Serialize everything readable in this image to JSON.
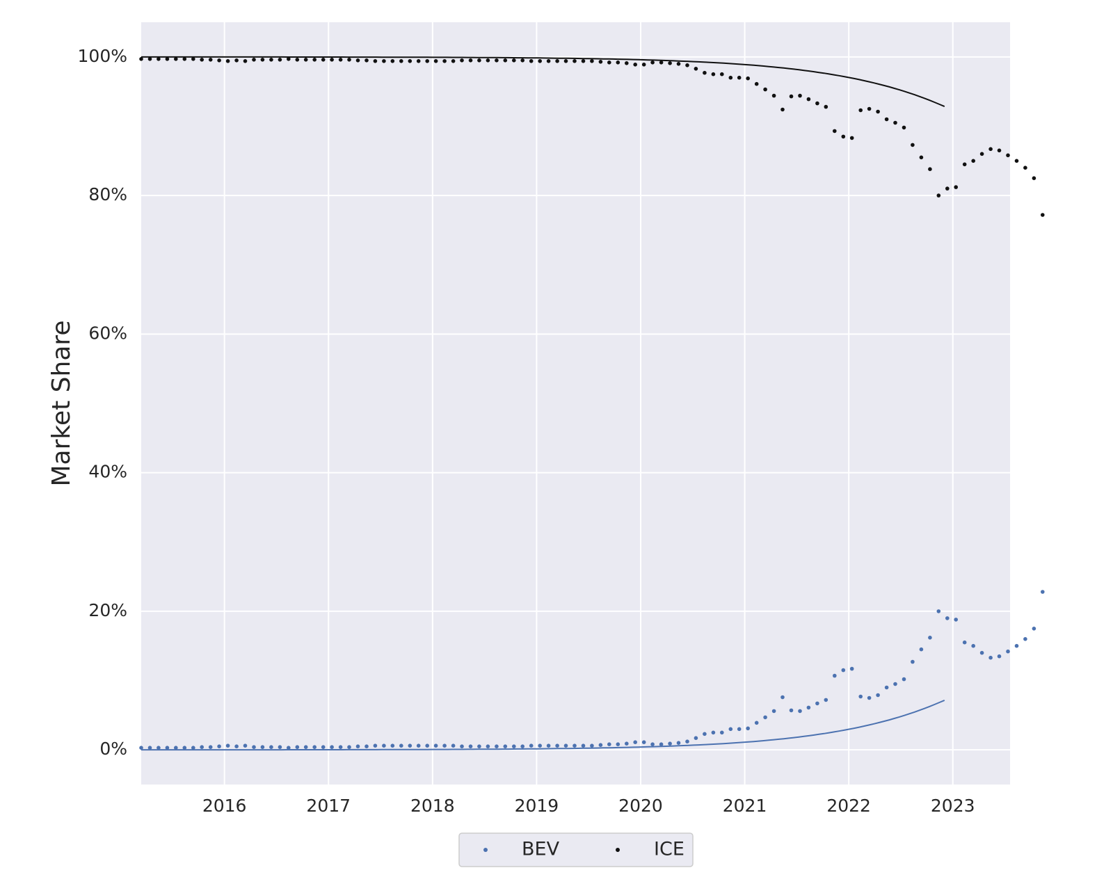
{
  "chart_data": {
    "type": "scatter",
    "title": "",
    "xlabel": "",
    "ylabel": "Market Share",
    "xlim": [
      2015.2,
      2023.55
    ],
    "ylim": [
      -0.05,
      1.05
    ],
    "xticks": [
      2016,
      2017,
      2018,
      2019,
      2020,
      2021,
      2022,
      2023
    ],
    "xtick_labels": [
      "2016",
      "2017",
      "2018",
      "2019",
      "2020",
      "2021",
      "2022",
      "2023"
    ],
    "yticks": [
      0,
      0.2,
      0.4,
      0.6,
      0.8,
      1.0
    ],
    "ytick_labels": [
      "0%",
      "20%",
      "40%",
      "60%",
      "80%",
      "100%"
    ],
    "grid": true,
    "legend_position": "bottom-center",
    "x_start": 2015.2,
    "x_step": 0.0833,
    "series": [
      {
        "name": "BEV",
        "color": "#4c72b0",
        "marker": "dot",
        "values": [
          0.003,
          0.003,
          0.003,
          0.003,
          0.003,
          0.003,
          0.003,
          0.004,
          0.004,
          0.005,
          0.006,
          0.005,
          0.006,
          0.004,
          0.004,
          0.004,
          0.004,
          0.003,
          0.004,
          0.004,
          0.004,
          0.004,
          0.004,
          0.004,
          0.004,
          0.005,
          0.005,
          0.006,
          0.006,
          0.006,
          0.006,
          0.006,
          0.006,
          0.006,
          0.006,
          0.006,
          0.006,
          0.005,
          0.005,
          0.005,
          0.005,
          0.005,
          0.005,
          0.005,
          0.005,
          0.006,
          0.006,
          0.006,
          0.006,
          0.006,
          0.006,
          0.006,
          0.006,
          0.007,
          0.008,
          0.008,
          0.009,
          0.011,
          0.011,
          0.008,
          0.008,
          0.009,
          0.01,
          0.012,
          0.017,
          0.023,
          0.025,
          0.025,
          0.03,
          0.03,
          0.031,
          0.039,
          0.047,
          0.056,
          0.076,
          0.057,
          0.056,
          0.061,
          0.067,
          0.072,
          0.107,
          0.115,
          0.117,
          0.077,
          0.075,
          0.079,
          0.09,
          0.095,
          0.102,
          0.127,
          0.145,
          0.162,
          0.2,
          0.19,
          0.188,
          0.155,
          0.15,
          0.14,
          0.133,
          0.135,
          0.142,
          0.15,
          0.16,
          0.175,
          0.228
        ]
      },
      {
        "name": "ICE",
        "color": "#111111",
        "marker": "dot",
        "values": [
          0.997,
          0.997,
          0.997,
          0.997,
          0.997,
          0.997,
          0.997,
          0.996,
          0.996,
          0.995,
          0.994,
          0.995,
          0.994,
          0.996,
          0.996,
          0.996,
          0.996,
          0.997,
          0.996,
          0.996,
          0.996,
          0.996,
          0.996,
          0.996,
          0.996,
          0.995,
          0.995,
          0.994,
          0.994,
          0.994,
          0.994,
          0.994,
          0.994,
          0.994,
          0.994,
          0.994,
          0.994,
          0.995,
          0.995,
          0.995,
          0.995,
          0.995,
          0.995,
          0.995,
          0.995,
          0.994,
          0.994,
          0.994,
          0.994,
          0.994,
          0.994,
          0.994,
          0.994,
          0.993,
          0.992,
          0.992,
          0.991,
          0.989,
          0.989,
          0.992,
          0.992,
          0.991,
          0.99,
          0.988,
          0.983,
          0.977,
          0.975,
          0.975,
          0.97,
          0.97,
          0.969,
          0.961,
          0.953,
          0.944,
          0.924,
          0.943,
          0.944,
          0.939,
          0.933,
          0.928,
          0.893,
          0.885,
          0.883,
          0.923,
          0.925,
          0.921,
          0.91,
          0.905,
          0.898,
          0.873,
          0.855,
          0.838,
          0.8,
          0.81,
          0.812,
          0.845,
          0.85,
          0.86,
          0.867,
          0.865,
          0.858,
          0.85,
          0.84,
          0.825,
          0.772
        ]
      }
    ],
    "trend_lines": [
      {
        "series": "BEV",
        "color": "#4c72b0",
        "x_end": 2022.92
      },
      {
        "series": "ICE",
        "color": "#111111",
        "x_end": 2022.92
      }
    ],
    "legend": {
      "entries": [
        {
          "label": "BEV",
          "color": "#4c72b0"
        },
        {
          "label": "ICE",
          "color": "#111111"
        }
      ]
    },
    "colors": {
      "plot_background": "#eaeaf2",
      "grid": "#ffffff",
      "text": "#262626"
    }
  }
}
